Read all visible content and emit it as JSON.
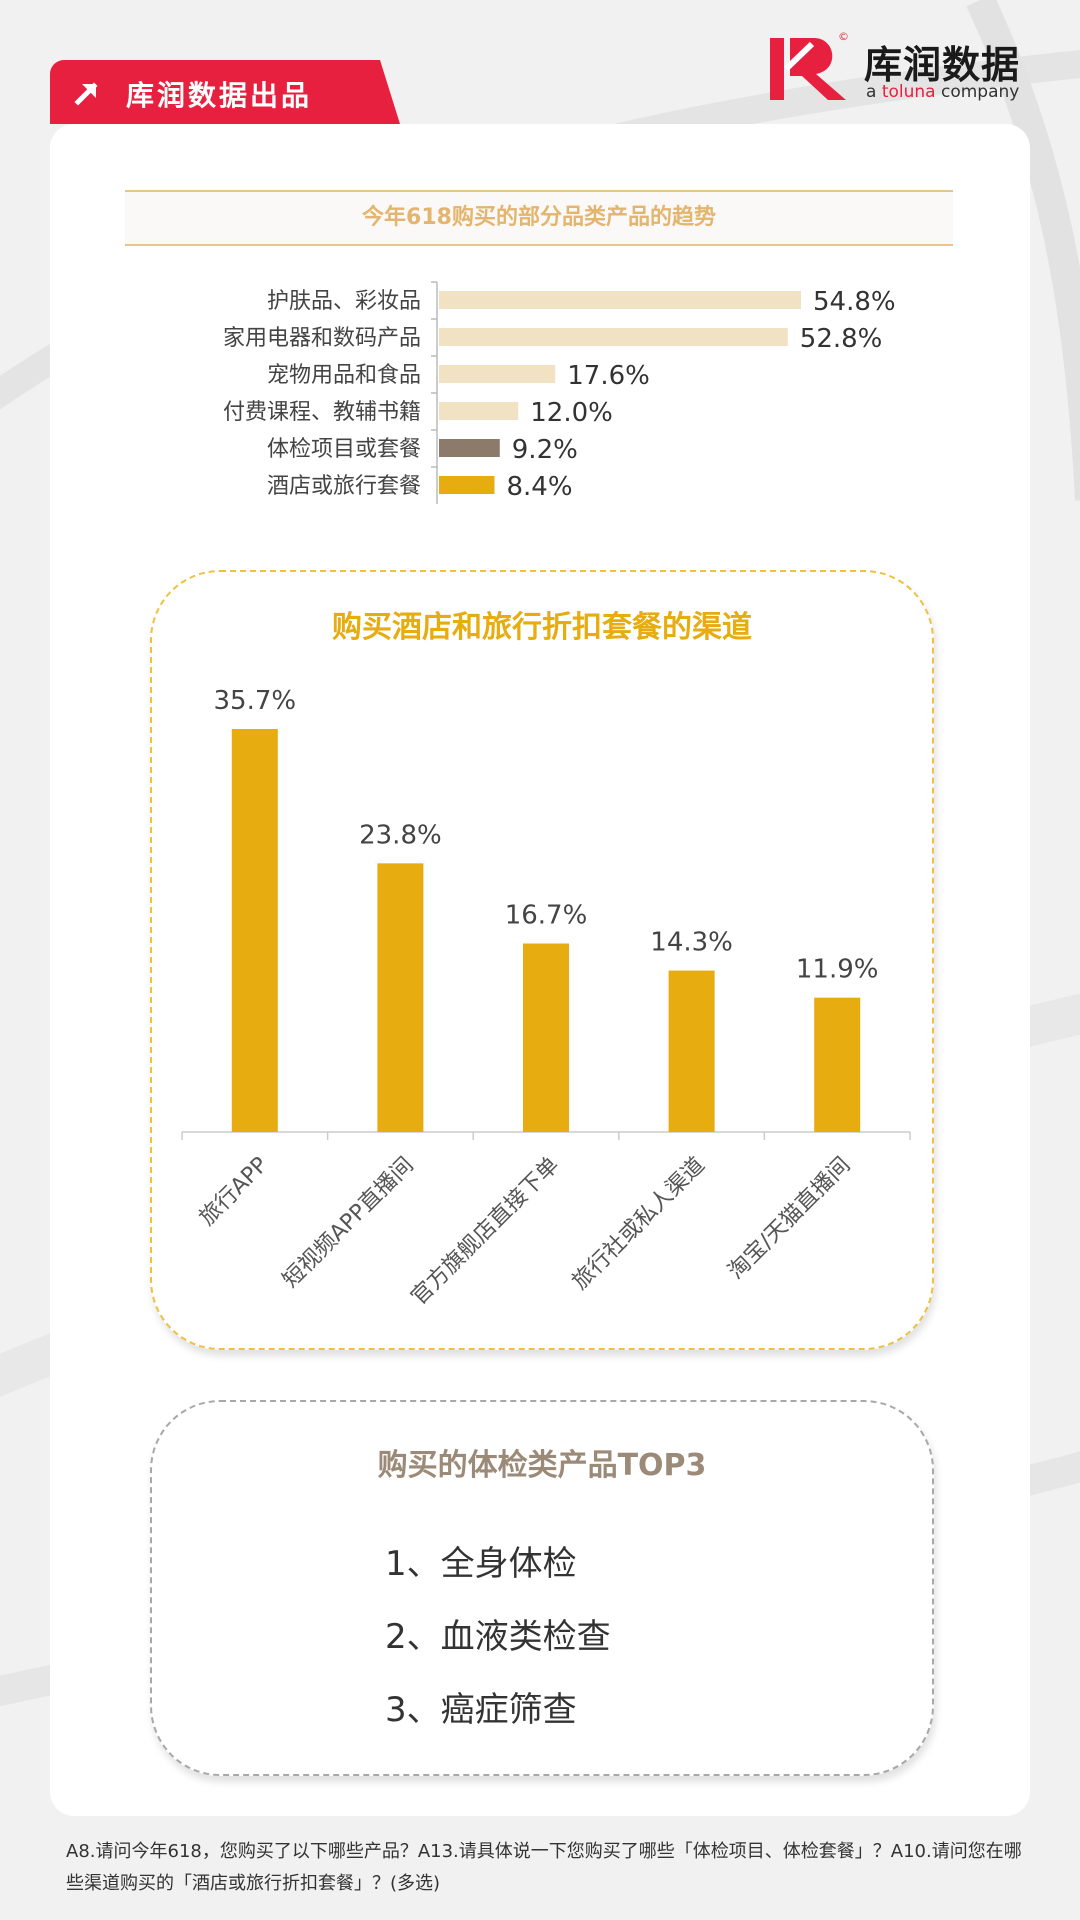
{
  "header": {
    "tag_label": "库润数据出品",
    "logo_name": "库润数据",
    "logo_sub_prefix": "a ",
    "logo_sub_brand": "toluna",
    "logo_sub_suffix": " company",
    "logo_copyright": "©"
  },
  "colors": {
    "brand_red": "#e8203f",
    "gold": "#e6ac10",
    "beige": "#f2e2c4",
    "taupe": "#8c7b6a",
    "gold_title": "#e3b56f"
  },
  "chart_data": [
    {
      "type": "bar",
      "orientation": "horizontal",
      "title": "今年618购买的部分品类产品的趋势",
      "categories": [
        "护肤品、彩妆品",
        "家用电器和数码产品",
        "宠物用品和食品",
        "付费课程、教辅书籍",
        "体检项目或套餐",
        "酒店或旅行套餐"
      ],
      "values": [
        54.8,
        52.8,
        17.6,
        12.0,
        9.2,
        8.4
      ],
      "value_labels": [
        "54.8%",
        "52.8%",
        "17.6%",
        "12.0%",
        "9.2%",
        "8.4%"
      ],
      "bar_colors": [
        "#f2e2c4",
        "#f2e2c4",
        "#f2e2c4",
        "#f2e2c4",
        "#8c7b6a",
        "#e6ac10"
      ],
      "unit": "%",
      "grid": false
    },
    {
      "type": "bar",
      "orientation": "vertical",
      "title": "购买酒店和旅行折扣套餐的渠道",
      "categories": [
        "旅行APP",
        "短视频APP直播间",
        "官方旗舰店直接下单",
        "旅行社或私人渠道",
        "淘宝/天猫直播间"
      ],
      "values": [
        35.7,
        23.8,
        16.7,
        14.3,
        11.9
      ],
      "value_labels": [
        "35.7%",
        "23.8%",
        "16.7%",
        "14.3%",
        "11.9%"
      ],
      "bar_color": "#e6ac10",
      "unit": "%",
      "grid": false
    }
  ],
  "top3": {
    "title": "购买的体检类产品TOP3",
    "items": [
      "1、全身体检",
      "2、血液类检查",
      "3、癌症筛查"
    ]
  },
  "footnote": "A8.请问今年618，您购买了以下哪些产品？A13.请具体说一下您购买了哪些「体检项目、体检套餐」？A10.请问您在哪些渠道购买的「酒店或旅行折扣套餐」？(多选)"
}
